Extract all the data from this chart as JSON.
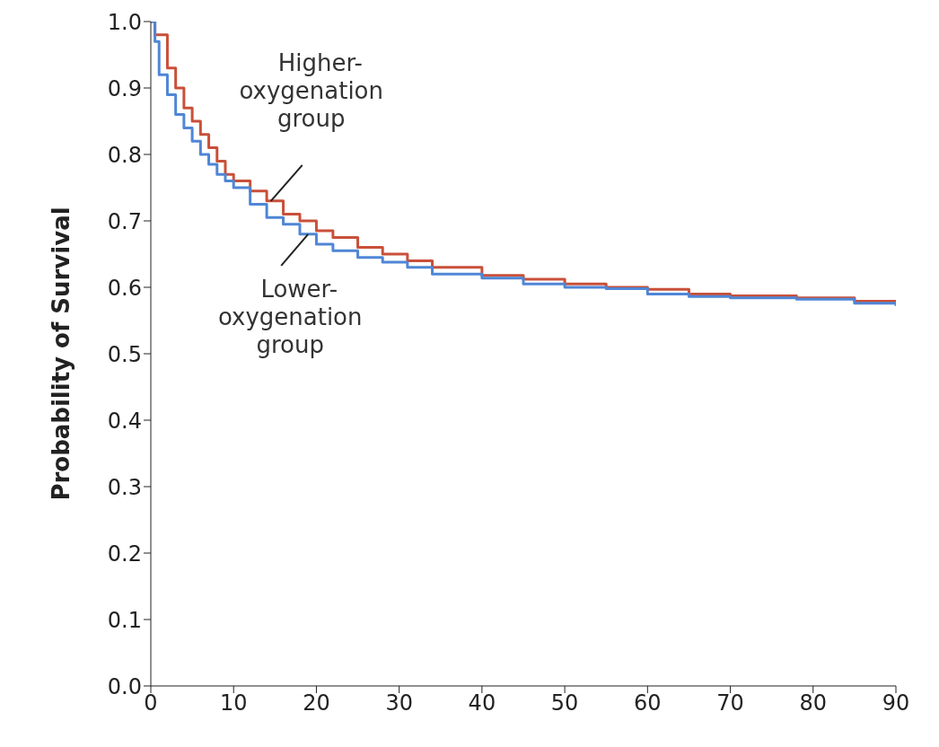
{
  "chart_data": {
    "type": "step",
    "ylabel": "Probability of Survival",
    "xlim": [
      0,
      90
    ],
    "xticks": [
      0,
      10,
      20,
      30,
      40,
      50,
      60,
      70,
      80,
      90
    ],
    "ylim": [
      0,
      1
    ],
    "yticks": [
      {
        "value": 0,
        "label": "0.0"
      },
      0.1,
      0.2,
      0.3,
      0.4,
      0.5,
      0.6,
      0.7,
      0.8,
      0.9,
      {
        "value": 1,
        "label": "1.0"
      }
    ],
    "grid": false,
    "legend": false,
    "marker": "none",
    "line_style": "solid",
    "series": [
      {
        "color": "#c9503a",
        "x": [
          0,
          0.5,
          1,
          2,
          3,
          4,
          5,
          6,
          7,
          8,
          9,
          10,
          12,
          14,
          16,
          18,
          20,
          22,
          25,
          28,
          31,
          34,
          40,
          45,
          50,
          55,
          60,
          65,
          70,
          78,
          85,
          90
        ],
        "values": [
          1.0,
          0.98,
          0.98,
          0.93,
          0.9,
          0.87,
          0.85,
          0.83,
          0.81,
          0.79,
          0.77,
          0.76,
          0.745,
          0.73,
          0.71,
          0.7,
          0.685,
          0.675,
          0.66,
          0.65,
          0.64,
          0.63,
          0.618,
          0.612,
          0.605,
          0.6,
          0.597,
          0.59,
          0.587,
          0.584,
          0.579,
          0.575
        ]
      },
      {
        "color": "#4f86d6",
        "x": [
          0,
          0.5,
          1,
          2,
          3,
          4,
          5,
          6,
          7,
          8,
          9,
          10,
          12,
          14,
          16,
          18,
          20,
          22,
          25,
          28,
          31,
          34,
          40,
          45,
          50,
          55,
          60,
          65,
          70,
          78,
          85,
          90
        ],
        "values": [
          1.0,
          0.97,
          0.92,
          0.89,
          0.86,
          0.84,
          0.82,
          0.8,
          0.785,
          0.77,
          0.76,
          0.75,
          0.725,
          0.705,
          0.695,
          0.68,
          0.665,
          0.655,
          0.645,
          0.638,
          0.63,
          0.62,
          0.614,
          0.605,
          0.6,
          0.598,
          0.59,
          0.586,
          0.584,
          0.582,
          0.576,
          0.572
        ]
      }
    ],
    "annotations": [
      {
        "text": "Higher-\noxygenation\ngroup",
        "x": 14.5,
        "y": 0.73
      },
      {
        "text": "Lower-\noxygenation\ngroup",
        "x": 19,
        "y": 0.68
      }
    ]
  }
}
